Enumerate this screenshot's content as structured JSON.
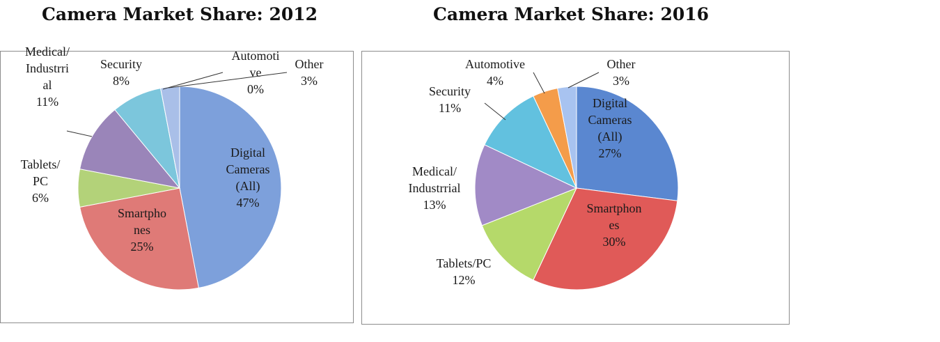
{
  "chart_data": [
    {
      "type": "pie",
      "title": "Camera Market Share: 2012",
      "slices": [
        {
          "label": "Digital Cameras (All)",
          "value": 47,
          "display": [
            "Digital",
            "Cameras",
            "(All)",
            "47%"
          ],
          "color": "#7da0db"
        },
        {
          "label": "Smartphones",
          "value": 25,
          "display": [
            "Smartpho",
            "nes",
            "25%"
          ],
          "color": "#df7a77"
        },
        {
          "label": "Tablets/ PC",
          "value": 6,
          "display": [
            "Tablets/",
            "PC",
            "6%"
          ],
          "color": "#b3d279"
        },
        {
          "label": "Medical/ Industrrial",
          "value": 11,
          "display": [
            "Medical/",
            "Industrri",
            "al",
            "11%"
          ],
          "color": "#9a85b9"
        },
        {
          "label": "Security",
          "value": 8,
          "display": [
            "Security",
            "8%"
          ],
          "color": "#7cc6dc"
        },
        {
          "label": "Automotive",
          "value": 0,
          "display": [
            "Automoti",
            "ve",
            "0%"
          ],
          "color": "#f4a24c"
        },
        {
          "label": "Other",
          "value": 3,
          "display": [
            "Other",
            "3%"
          ],
          "color": "#a9bfe8"
        }
      ]
    },
    {
      "type": "pie",
      "title": "Camera Market Share: 2016",
      "slices": [
        {
          "label": "Digital Cameras (All)",
          "value": 27,
          "display": [
            "Digital",
            "Cameras",
            "(All)",
            "27%"
          ],
          "color": "#5a87d0"
        },
        {
          "label": "Smartphones",
          "value": 30,
          "display": [
            "Smartphon",
            "es",
            "30%"
          ],
          "color": "#e05a58"
        },
        {
          "label": "Tablets/PC",
          "value": 12,
          "display": [
            "Tablets/PC",
            "12%"
          ],
          "color": "#b5d96a"
        },
        {
          "label": "Medical/ Industrrial",
          "value": 13,
          "display": [
            "Medical/",
            "Industrrial",
            "13%"
          ],
          "color": "#a18ac6"
        },
        {
          "label": "Security",
          "value": 11,
          "display": [
            "Security",
            "11%"
          ],
          "color": "#62c1df"
        },
        {
          "label": "Automotive",
          "value": 4,
          "display": [
            "Automotive",
            "4%"
          ],
          "color": "#f49c4a"
        },
        {
          "label": "Other",
          "value": 3,
          "display": [
            "Other",
            "3%"
          ],
          "color": "#a8c3f0"
        }
      ]
    }
  ]
}
